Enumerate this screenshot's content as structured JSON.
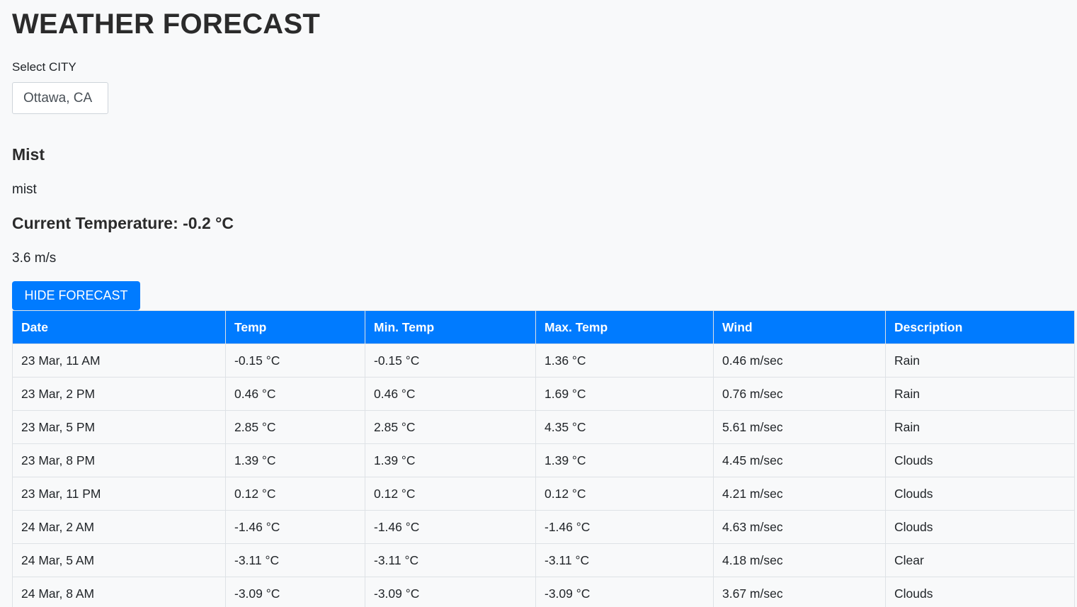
{
  "header": {
    "title": "WEATHER FORECAST"
  },
  "city": {
    "label": "Select CITY",
    "selected": "Ottawa, CA"
  },
  "current": {
    "condition": "Mist",
    "description": "mist",
    "temperature_text": "Current Temperature: -0.2 °C",
    "wind_text": "3.6 m/s"
  },
  "actions": {
    "toggle_forecast_label": "HIDE FORECAST"
  },
  "colors": {
    "accent": "#007bff",
    "background": "#f8f9fa"
  },
  "forecast": {
    "columns": [
      "Date",
      "Temp",
      "Min. Temp",
      "Max. Temp",
      "Wind",
      "Description"
    ],
    "rows": [
      [
        "23 Mar, 11 AM",
        "-0.15 °C",
        "-0.15 °C",
        "1.36 °C",
        "0.46 m/sec",
        "Rain"
      ],
      [
        "23 Mar, 2 PM",
        "0.46 °C",
        "0.46 °C",
        "1.69 °C",
        "0.76 m/sec",
        "Rain"
      ],
      [
        "23 Mar, 5 PM",
        "2.85 °C",
        "2.85 °C",
        "4.35 °C",
        "5.61 m/sec",
        "Rain"
      ],
      [
        "23 Mar, 8 PM",
        "1.39 °C",
        "1.39 °C",
        "1.39 °C",
        "4.45 m/sec",
        "Clouds"
      ],
      [
        "23 Mar, 11 PM",
        "0.12 °C",
        "0.12 °C",
        "0.12 °C",
        "4.21 m/sec",
        "Clouds"
      ],
      [
        "24 Mar, 2 AM",
        "-1.46 °C",
        "-1.46 °C",
        "-1.46 °C",
        "4.63 m/sec",
        "Clouds"
      ],
      [
        "24 Mar, 5 AM",
        "-3.11 °C",
        "-3.11 °C",
        "-3.11 °C",
        "4.18 m/sec",
        "Clear"
      ],
      [
        "24 Mar, 8 AM",
        "-3.09 °C",
        "-3.09 °C",
        "-3.09 °C",
        "3.67 m/sec",
        "Clouds"
      ]
    ]
  }
}
